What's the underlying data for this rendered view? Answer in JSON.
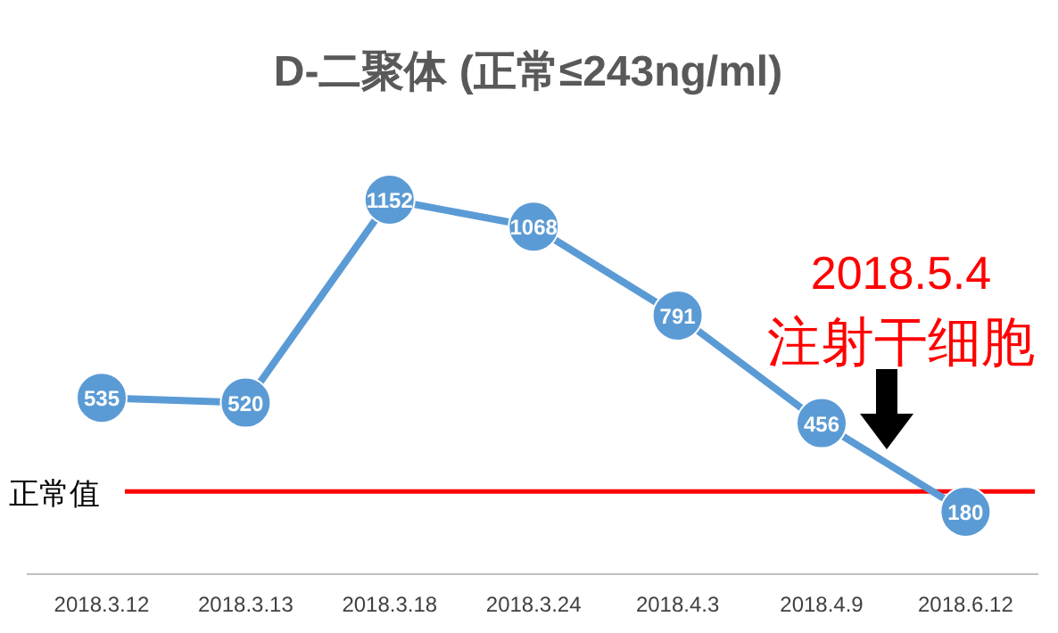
{
  "chart_data": {
    "type": "line",
    "title": "D-二聚体 (正常≤243ng/ml)",
    "categories": [
      "2018.3.12",
      "2018.3.13",
      "2018.3.18",
      "2018.3.24",
      "2018.4.3",
      "2018.4.9",
      "2018.6.12"
    ],
    "values": [
      535,
      520,
      1152,
      1068,
      791,
      456,
      180
    ],
    "color": "#5b9bd5",
    "marker": "circle",
    "data_labels": true,
    "ref_lines": [
      {
        "axis": "y",
        "value": 243,
        "label": "正常值",
        "color": "#ff0000"
      }
    ],
    "annotations": [
      "2018.5.4",
      "注射干细胞"
    ]
  }
}
